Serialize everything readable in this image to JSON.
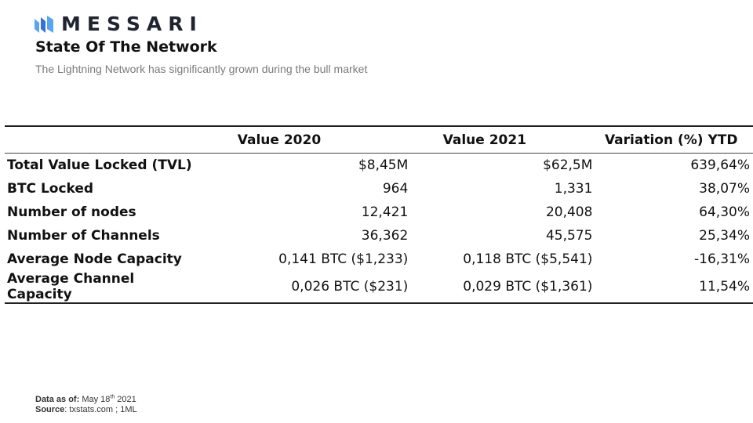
{
  "brand": {
    "name": "MESSARI",
    "colors": [
      "#3a6fd8",
      "#58a6f0",
      "#1f2430"
    ]
  },
  "header": {
    "title": "State Of The Network",
    "subtitle": "The Lightning Network has significantly grown during the bull market"
  },
  "table": {
    "columns": [
      "",
      "Value 2020",
      "Value 2021",
      "Variation (%) YTD"
    ],
    "rows": [
      {
        "label": "Total Value Locked (TVL)",
        "v2020": "$8,45M",
        "v2021": "$62,5M",
        "variation": "639,64%"
      },
      {
        "label": "BTC Locked",
        "v2020": "964",
        "v2021": "1,331",
        "variation": "38,07%"
      },
      {
        "label": "Number of nodes",
        "v2020": "12,421",
        "v2021": "20,408",
        "variation": "64,30%"
      },
      {
        "label": "Number of Channels",
        "v2020": "36,362",
        "v2021": "45,575",
        "variation": "25,34%"
      },
      {
        "label": "Average Node Capacity",
        "v2020": "0,141 BTC ($1,233)",
        "v2021": "0,118 BTC ($5,541)",
        "variation": "-16,31%"
      },
      {
        "label": "Average Channel Capacity",
        "v2020": "0,026 BTC ($231)",
        "v2021": "0,029 BTC ($1,361)",
        "variation": "11,54%"
      }
    ]
  },
  "footer": {
    "data_as_of_label": "Data as of:",
    "data_as_of_value": "May 18",
    "data_as_of_sup": "th",
    "data_as_of_year": "2021",
    "source_label": "Source",
    "source_value": ": txstats.com ; 1ML"
  }
}
